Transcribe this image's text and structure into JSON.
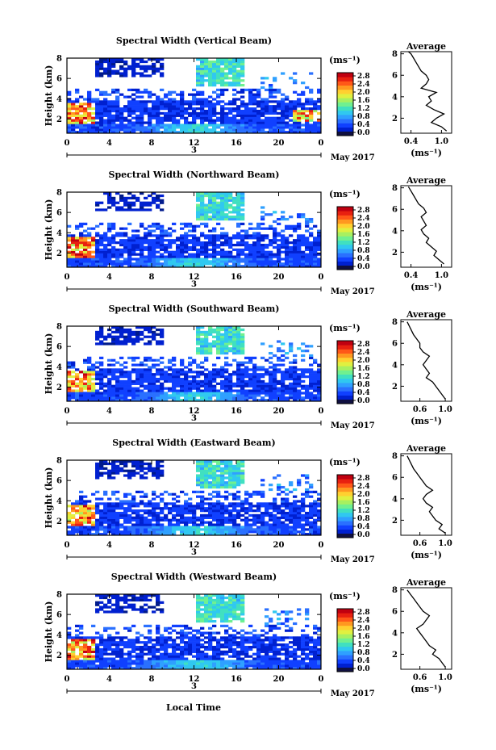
{
  "figure": {
    "xlabel": "Local Time",
    "date_label": "May 2017",
    "day_label": "3",
    "colorbar_unit": "(ms⁻¹)",
    "profile_title": "Average",
    "profile_xlabel": "(ms⁻¹)"
  },
  "colorbar_ticks": [
    "0.0",
    "0.4",
    "0.8",
    "1.2",
    "1.6",
    "2.0",
    "2.4",
    "2.8"
  ],
  "colormap": [
    "#001a8c",
    "#0020d0",
    "#1040ff",
    "#2a70ff",
    "#2fa0ff",
    "#30c8f0",
    "#40e0c0",
    "#70f090",
    "#a8f060",
    "#e0f040",
    "#ffd030",
    "#ff9820",
    "#ff5818",
    "#e82010",
    "#c00010"
  ],
  "chart_data": [
    {
      "type": "heatmap",
      "title": "Spectral Width (Vertical Beam)",
      "ylabel": "Height (km)",
      "x": {
        "label": "Local Time",
        "ticks": [
          "0",
          "4",
          "8",
          "12",
          "16",
          "20",
          "0"
        ],
        "range": [
          0,
          24
        ]
      },
      "y": {
        "ticks": [
          "2",
          "4",
          "6",
          "8"
        ],
        "range": [
          0.6,
          8
        ]
      },
      "colorbar": {
        "range": [
          0,
          2.8
        ]
      },
      "profile": {
        "title": "Average",
        "xticks": [
          "0.4",
          "1.0"
        ],
        "xrange": [
          0.2,
          1.2
        ],
        "yticks": [
          "2",
          "4",
          "6",
          "8"
        ],
        "x": [
          1.1,
          1.0,
          0.8,
          0.9,
          1.05,
          0.85,
          0.7,
          0.8,
          0.75,
          0.9,
          0.6,
          0.7,
          0.75,
          0.7,
          0.6,
          0.55,
          0.5,
          0.45,
          0.4,
          0.35
        ],
        "y": [
          0.8,
          1.2,
          1.6,
          2.0,
          2.4,
          2.8,
          3.2,
          3.6,
          4.0,
          4.4,
          4.8,
          5.2,
          5.6,
          6.0,
          6.4,
          6.8,
          7.2,
          7.6,
          8.0,
          8.2
        ]
      }
    },
    {
      "type": "heatmap",
      "title": "Spectral Width (Northward Beam)",
      "ylabel": "Height (km)",
      "x": {
        "ticks": [
          "0",
          "4",
          "8",
          "12",
          "16",
          "20",
          "0"
        ],
        "range": [
          0,
          24
        ]
      },
      "y": {
        "ticks": [
          "2",
          "4",
          "6",
          "8"
        ],
        "range": [
          0.6,
          8
        ]
      },
      "colorbar": {
        "range": [
          0,
          2.8
        ]
      },
      "profile": {
        "title": "Average",
        "xticks": [
          "0.4",
          "1.0"
        ],
        "xrange": [
          0.2,
          1.2
        ],
        "yticks": [
          "2",
          "4",
          "6",
          "8"
        ],
        "x": [
          1.05,
          0.95,
          0.85,
          0.9,
          0.8,
          0.7,
          0.75,
          0.65,
          0.6,
          0.7,
          0.65,
          0.6,
          0.7,
          0.65,
          0.55,
          0.5,
          0.45,
          0.4,
          0.35
        ],
        "y": [
          0.9,
          1.3,
          1.7,
          2.1,
          2.5,
          2.9,
          3.3,
          3.7,
          4.1,
          4.5,
          4.9,
          5.3,
          5.7,
          6.1,
          6.5,
          6.9,
          7.3,
          7.7,
          8.1
        ]
      }
    },
    {
      "type": "heatmap",
      "title": "Spectral Width (Southward Beam)",
      "ylabel": "Height (km)",
      "x": {
        "ticks": [
          "0",
          "4",
          "8",
          "12",
          "16",
          "20",
          "0"
        ],
        "range": [
          0,
          24
        ]
      },
      "y": {
        "ticks": [
          "2",
          "4",
          "6",
          "8"
        ],
        "range": [
          0.6,
          8
        ]
      },
      "colorbar": {
        "range": [
          0,
          2.8
        ]
      },
      "profile": {
        "title": "Average",
        "xticks": [
          "0.6",
          "1.0"
        ],
        "xrange": [
          0.3,
          1.1
        ],
        "yticks": [
          "2",
          "4",
          "6",
          "8"
        ],
        "x": [
          1.0,
          0.95,
          0.9,
          0.85,
          0.8,
          0.7,
          0.75,
          0.7,
          0.65,
          0.7,
          0.75,
          0.65,
          0.6,
          0.6,
          0.55,
          0.5,
          0.45,
          0.4
        ],
        "y": [
          0.8,
          1.2,
          1.6,
          2.0,
          2.4,
          2.8,
          3.2,
          3.6,
          4.0,
          4.4,
          4.8,
          5.2,
          5.6,
          6.0,
          6.4,
          6.8,
          7.4,
          8.0
        ]
      }
    },
    {
      "type": "heatmap",
      "title": "Spectral Width (Eastward Beam)",
      "ylabel": "Height (km)",
      "x": {
        "ticks": [
          "0",
          "4",
          "8",
          "12",
          "16",
          "20",
          "0"
        ],
        "range": [
          0,
          24
        ]
      },
      "y": {
        "ticks": [
          "2",
          "4",
          "6",
          "8"
        ],
        "range": [
          0.6,
          8
        ]
      },
      "colorbar": {
        "range": [
          0,
          2.8
        ]
      },
      "profile": {
        "title": "Average",
        "xticks": [
          "0.6",
          "1.0"
        ],
        "xrange": [
          0.3,
          1.1
        ],
        "yticks": [
          "2",
          "4",
          "6",
          "8"
        ],
        "x": [
          1.0,
          0.9,
          0.95,
          0.85,
          0.8,
          0.75,
          0.8,
          0.7,
          0.65,
          0.7,
          0.8,
          0.7,
          0.65,
          0.6,
          0.55,
          0.5,
          0.45,
          0.4
        ],
        "y": [
          0.8,
          1.2,
          1.6,
          2.0,
          2.4,
          2.8,
          3.2,
          3.6,
          4.0,
          4.4,
          4.8,
          5.2,
          5.6,
          6.0,
          6.4,
          6.8,
          7.4,
          8.0
        ]
      }
    },
    {
      "type": "heatmap",
      "title": "Spectral Width (Westward Beam)",
      "ylabel": "Height (km)",
      "x": {
        "label": "Local Time",
        "ticks": [
          "0",
          "4",
          "8",
          "12",
          "16",
          "20",
          "0"
        ],
        "range": [
          0,
          24
        ]
      },
      "y": {
        "ticks": [
          "2",
          "4",
          "6",
          "8"
        ],
        "range": [
          0.6,
          8
        ]
      },
      "colorbar": {
        "range": [
          0,
          2.8
        ]
      },
      "profile": {
        "title": "Average",
        "xticks": [
          "0.6",
          "1.0"
        ],
        "xrange": [
          0.3,
          1.1
        ],
        "yticks": [
          "2",
          "4",
          "6",
          "8"
        ],
        "x": [
          1.0,
          0.95,
          0.9,
          0.8,
          0.85,
          0.75,
          0.7,
          0.65,
          0.6,
          0.55,
          0.65,
          0.7,
          0.75,
          0.65,
          0.6,
          0.55,
          0.5,
          0.45,
          0.4
        ],
        "y": [
          0.8,
          1.2,
          1.6,
          2.0,
          2.4,
          2.8,
          3.2,
          3.6,
          4.0,
          4.4,
          4.8,
          5.2,
          5.6,
          6.0,
          6.4,
          6.8,
          7.2,
          7.6,
          8.0
        ]
      }
    }
  ]
}
